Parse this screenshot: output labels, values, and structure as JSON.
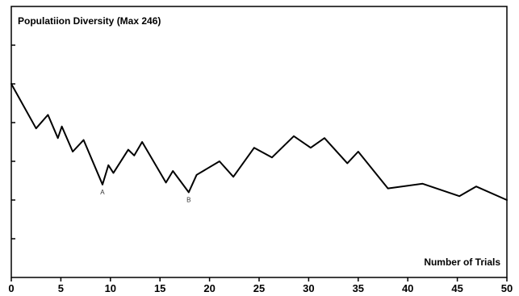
{
  "chart_data": {
    "type": "line",
    "title": "Populatiion Diversity (Max 246)",
    "xlabel": "Number of Trials",
    "ylabel": "",
    "xlim": [
      0,
      50
    ],
    "ylim": [
      0,
      7
    ],
    "grid": false,
    "legend": "none",
    "x_ticks": [
      0,
      5,
      10,
      15,
      20,
      25,
      30,
      35,
      40,
      45,
      50
    ],
    "y_ticks": [
      1,
      2,
      3,
      4,
      5,
      6
    ],
    "show_y_tick_labels": false,
    "line_color": "#000000",
    "series": [
      {
        "x": [
          0,
          2.5,
          3.7,
          4.7,
          5.1,
          6.2,
          7.3,
          9.2,
          9.8,
          10.3,
          11.8,
          12.4,
          13.2,
          15.6,
          16.3,
          17.9,
          18.7,
          21.0,
          22.4,
          24.5,
          26.3,
          28.5,
          30.2,
          31.6,
          33.9,
          35.0,
          38.0,
          41.5,
          45.2,
          46.9,
          50.0
        ],
        "y": [
          5.0,
          3.85,
          4.2,
          3.6,
          3.9,
          3.25,
          3.55,
          2.4,
          2.9,
          2.7,
          3.3,
          3.15,
          3.5,
          2.45,
          2.75,
          2.2,
          2.65,
          3.0,
          2.6,
          3.35,
          3.1,
          3.65,
          3.35,
          3.6,
          2.95,
          3.25,
          2.3,
          2.42,
          2.1,
          2.35,
          2.0
        ]
      }
    ],
    "annotations": [
      {
        "label": "A",
        "x": 9.2,
        "y": 2.4
      },
      {
        "label": "B",
        "x": 17.9,
        "y": 2.2
      }
    ]
  }
}
